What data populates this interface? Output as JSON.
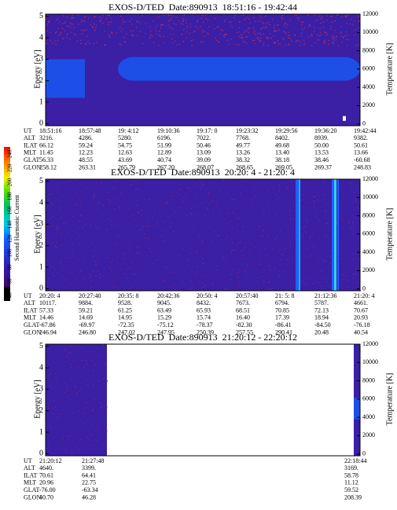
{
  "chart_data": [
    {
      "type": "heatmap",
      "title": "EXOS-D/TED  Date:890913  18:51:16 - 19:42:44",
      "ylabel": "Energy [eV]",
      "y2label": "Temperature [K]",
      "ylim": [
        -0.1,
        5.1
      ],
      "yticks": [
        0,
        1,
        2,
        3,
        4,
        5
      ],
      "y2lim": [
        -200,
        12000
      ],
      "y2ticks": [
        0,
        2000,
        4000,
        6000,
        8000,
        10000,
        12000
      ],
      "table": {
        "rows": [
          {
            "label": "UT",
            "values": [
              "18:51:16",
              "18:57:48",
              "19: 4:12",
              "19:10:36",
              "19:17: 0",
              "19:23:32",
              "19:29:56",
              "19:36:20",
              "19:42:44"
            ]
          },
          {
            "label": "ALT",
            "values": [
              "3216.",
              "4286.",
              "5280.",
              "6196.",
              "7022.",
              "7768.",
              "8402.",
              "8939.",
              "9382."
            ]
          },
          {
            "label": "ILAT",
            "values": [
              "66.12",
              "59.24",
              "54.75",
              "51.99",
              "50.46",
              "49.77",
              "49.68",
              "50.00",
              "50.61"
            ]
          },
          {
            "label": "MLT",
            "values": [
              "11.45",
              "12.23",
              "12.63",
              "12.89",
              "13.09",
              "13.26",
              "13.40",
              "13.53",
              "13.66"
            ]
          },
          {
            "label": "GLAT",
            "values": [
              "56.33",
              "48.55",
              "43.69",
              "40.74",
              "39.09",
              "38.32",
              "38.18",
              "38.46",
              "-60.68"
            ]
          },
          {
            "label": "GLON",
            "values": [
              "258.12",
              "263.31",
              "265.79",
              "267.20",
              "268.07",
              "268.65",
              "269.05",
              "269.37",
              "248.83"
            ]
          }
        ]
      }
    },
    {
      "type": "heatmap",
      "title": "EXOS-D/TED  Date:890913  20:20: 4 - 21:20: 4",
      "ylabel": "Energy [eV]",
      "y2label": "Temperature [K]",
      "ylim": [
        -0.1,
        5.1
      ],
      "yticks": [
        0,
        1,
        2,
        3,
        4,
        5
      ],
      "y2lim": [
        -200,
        12000
      ],
      "y2ticks": [
        0,
        2000,
        4000,
        6000,
        8000,
        10000,
        12000
      ],
      "table": {
        "rows": [
          {
            "label": "UT",
            "values": [
              "20:20: 4",
              "20:27:40",
              "20:35: 8",
              "20:42:36",
              "20:50: 4",
              "20:57:40",
              "21: 5: 8",
              "21:12:36",
              "21:20: 4"
            ]
          },
          {
            "label": "ALT",
            "values": [
              "10117.",
              "9884.",
              "9528.",
              "9045.",
              "8432.",
              "7673.",
              "6794.",
              "5787.",
              "4661."
            ]
          },
          {
            "label": "ILAT",
            "values": [
              "57.33",
              "59.21",
              "61.25",
              "63.49",
              "65.93",
              "68.51",
              "70.85",
              "72.13",
              "70.67"
            ]
          },
          {
            "label": "MLT",
            "values": [
              "14.46",
              "14.69",
              "14.95",
              "15.29",
              "15.74",
              "16.40",
              "17.39",
              "18.94",
              "20.93"
            ]
          },
          {
            "label": "GLAT",
            "values": [
              "-67.86",
              "-69.97",
              "-72.35",
              "-75.12",
              "-78.37",
              "-82.30",
              "-86.41",
              "-84.50",
              "-76.18"
            ]
          },
          {
            "label": "GLON",
            "values": [
              "246.94",
              "246.80",
              "247.02",
              "247.95",
              "250.39",
              "257.55",
              "290.41",
              "20.48",
              "40.54"
            ]
          }
        ]
      }
    },
    {
      "type": "heatmap",
      "title": "EXOS-D/TED  Date:890913  21:20:12 - 22:20:12",
      "ylabel": "Energy [eV]",
      "y2label": "Temperature [K]",
      "ylim": [
        -0.1,
        5.1
      ],
      "yticks": [
        0,
        1,
        2,
        3,
        4,
        5
      ],
      "y2lim": [
        -200,
        12000
      ],
      "y2ticks": [
        0,
        2000,
        4000,
        6000,
        8000,
        10000,
        12000
      ],
      "table": {
        "rows": [
          {
            "label": "UT",
            "values": [
              "21:20:12",
              "21:27:48",
              "22:18:44"
            ]
          },
          {
            "label": "ALT",
            "values": [
              "4640.",
              "3399.",
              "3169."
            ]
          },
          {
            "label": "ILAT",
            "values": [
              "70.61",
              "64.41",
              "58.78"
            ]
          },
          {
            "label": "MLT",
            "values": [
              "20.96",
              "22.75",
              "11.12"
            ]
          },
          {
            "label": "GLAT",
            "values": [
              "-76.00",
              "-63.34",
              "59.52"
            ]
          },
          {
            "label": "GLON",
            "values": [
              "40.70",
              "46.28",
              "208.39"
            ]
          }
        ]
      }
    }
  ],
  "colorbar": {
    "label": "Second Harmonic Current",
    "clim": [
      32,
      250
    ],
    "ticks": [
      40,
      60,
      80,
      100,
      120,
      140,
      160,
      180,
      200,
      220,
      240
    ]
  }
}
